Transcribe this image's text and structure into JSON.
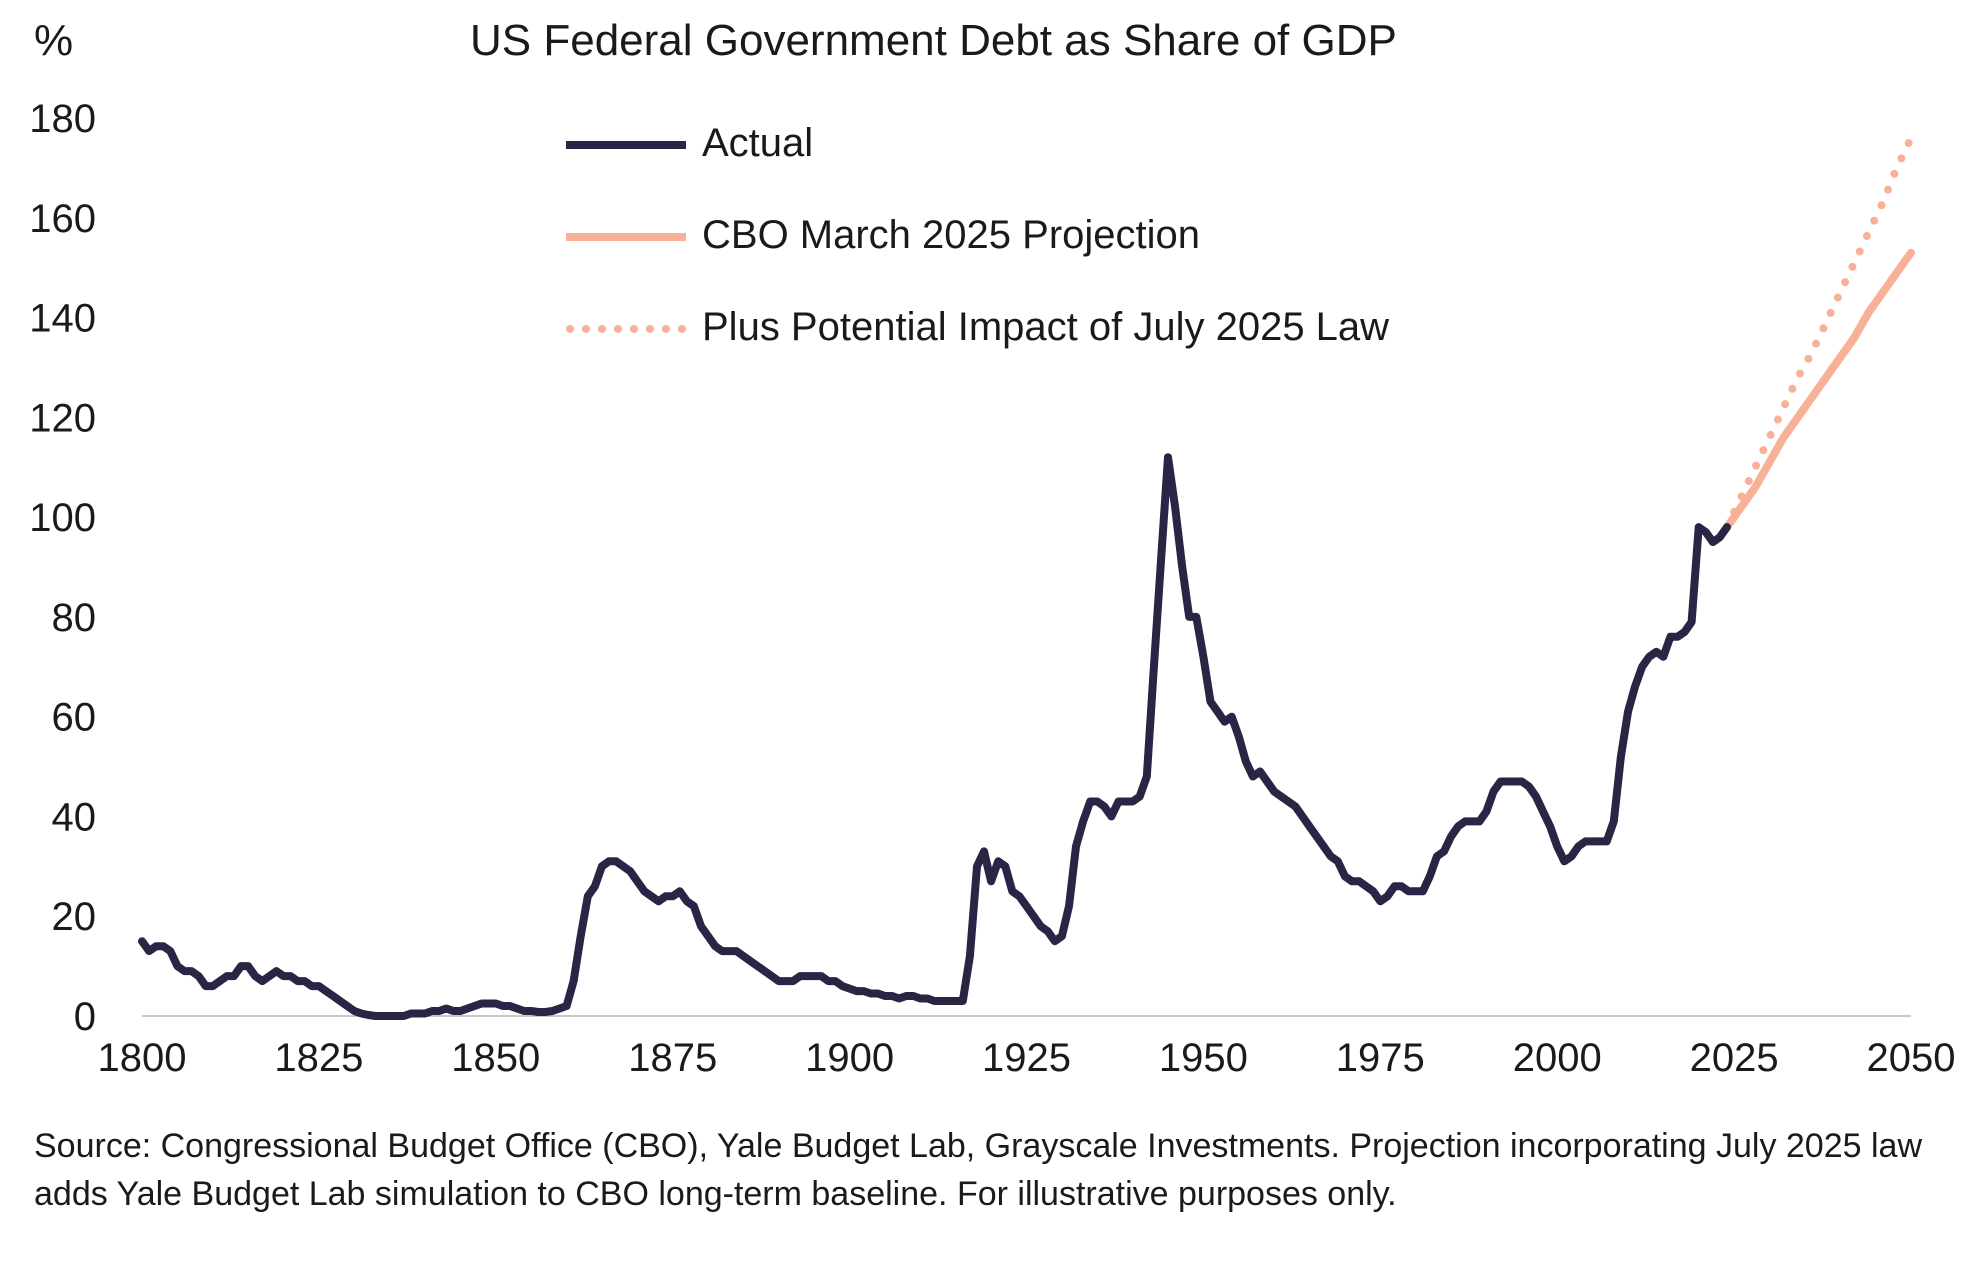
{
  "chart_data": {
    "type": "line",
    "title": "US Federal Government Debt as Share of GDP",
    "ylabel": "%",
    "xlim": [
      1800,
      2050
    ],
    "ylim": [
      0,
      180
    ],
    "xticks": [
      "1800",
      "1825",
      "1850",
      "1875",
      "1900",
      "1925",
      "1950",
      "1975",
      "2000",
      "2025",
      "2050"
    ],
    "yticks": [
      "0",
      "20",
      "40",
      "60",
      "80",
      "100",
      "120",
      "140",
      "160",
      "180"
    ],
    "grid": false,
    "legend_position": "top-center",
    "colors": {
      "actual": "#2a2445",
      "projection": "#f8b196"
    },
    "series": [
      {
        "name": "Actual",
        "style": "solid",
        "color": "#2a2445",
        "points": [
          [
            1800,
            15
          ],
          [
            1801,
            13
          ],
          [
            1802,
            14
          ],
          [
            1803,
            14
          ],
          [
            1804,
            13
          ],
          [
            1805,
            10
          ],
          [
            1806,
            9
          ],
          [
            1807,
            9
          ],
          [
            1808,
            8
          ],
          [
            1809,
            6
          ],
          [
            1810,
            6
          ],
          [
            1811,
            7
          ],
          [
            1812,
            8
          ],
          [
            1813,
            8
          ],
          [
            1814,
            10
          ],
          [
            1815,
            10
          ],
          [
            1816,
            8
          ],
          [
            1817,
            7
          ],
          [
            1818,
            8
          ],
          [
            1819,
            9
          ],
          [
            1820,
            8
          ],
          [
            1821,
            8
          ],
          [
            1822,
            7
          ],
          [
            1823,
            7
          ],
          [
            1824,
            6
          ],
          [
            1825,
            6
          ],
          [
            1826,
            5
          ],
          [
            1827,
            4
          ],
          [
            1828,
            3
          ],
          [
            1829,
            2
          ],
          [
            1830,
            1
          ],
          [
            1831,
            0.5
          ],
          [
            1832,
            0.2
          ],
          [
            1833,
            0
          ],
          [
            1834,
            0
          ],
          [
            1835,
            0
          ],
          [
            1836,
            0
          ],
          [
            1837,
            0
          ],
          [
            1838,
            0.5
          ],
          [
            1839,
            0.5
          ],
          [
            1840,
            0.5
          ],
          [
            1841,
            1
          ],
          [
            1842,
            1
          ],
          [
            1843,
            1.5
          ],
          [
            1844,
            1
          ],
          [
            1845,
            1
          ],
          [
            1846,
            1.5
          ],
          [
            1847,
            2
          ],
          [
            1848,
            2.5
          ],
          [
            1849,
            2.5
          ],
          [
            1850,
            2.5
          ],
          [
            1851,
            2
          ],
          [
            1852,
            2
          ],
          [
            1853,
            1.5
          ],
          [
            1854,
            1
          ],
          [
            1855,
            1
          ],
          [
            1856,
            0.8
          ],
          [
            1857,
            0.8
          ],
          [
            1858,
            1
          ],
          [
            1859,
            1.5
          ],
          [
            1860,
            2
          ],
          [
            1861,
            7
          ],
          [
            1862,
            16
          ],
          [
            1863,
            24
          ],
          [
            1864,
            26
          ],
          [
            1865,
            30
          ],
          [
            1866,
            31
          ],
          [
            1867,
            31
          ],
          [
            1868,
            30
          ],
          [
            1869,
            29
          ],
          [
            1870,
            27
          ],
          [
            1871,
            25
          ],
          [
            1872,
            24
          ],
          [
            1873,
            23
          ],
          [
            1874,
            24
          ],
          [
            1875,
            24
          ],
          [
            1876,
            25
          ],
          [
            1877,
            23
          ],
          [
            1878,
            22
          ],
          [
            1879,
            18
          ],
          [
            1880,
            16
          ],
          [
            1881,
            14
          ],
          [
            1882,
            13
          ],
          [
            1883,
            13
          ],
          [
            1884,
            13
          ],
          [
            1885,
            12
          ],
          [
            1886,
            11
          ],
          [
            1887,
            10
          ],
          [
            1888,
            9
          ],
          [
            1889,
            8
          ],
          [
            1890,
            7
          ],
          [
            1891,
            7
          ],
          [
            1892,
            7
          ],
          [
            1893,
            8
          ],
          [
            1894,
            8
          ],
          [
            1895,
            8
          ],
          [
            1896,
            8
          ],
          [
            1897,
            7
          ],
          [
            1898,
            7
          ],
          [
            1899,
            6
          ],
          [
            1900,
            5.5
          ],
          [
            1901,
            5
          ],
          [
            1902,
            5
          ],
          [
            1903,
            4.5
          ],
          [
            1904,
            4.5
          ],
          [
            1905,
            4
          ],
          [
            1906,
            4
          ],
          [
            1907,
            3.5
          ],
          [
            1908,
            4
          ],
          [
            1909,
            4
          ],
          [
            1910,
            3.5
          ],
          [
            1911,
            3.5
          ],
          [
            1912,
            3
          ],
          [
            1913,
            3
          ],
          [
            1914,
            3
          ],
          [
            1915,
            3
          ],
          [
            1916,
            3
          ],
          [
            1917,
            12
          ],
          [
            1918,
            30
          ],
          [
            1919,
            33
          ],
          [
            1920,
            27
          ],
          [
            1921,
            31
          ],
          [
            1922,
            30
          ],
          [
            1923,
            25
          ],
          [
            1924,
            24
          ],
          [
            1925,
            22
          ],
          [
            1926,
            20
          ],
          [
            1927,
            18
          ],
          [
            1928,
            17
          ],
          [
            1929,
            15
          ],
          [
            1930,
            16
          ],
          [
            1931,
            22
          ],
          [
            1932,
            34
          ],
          [
            1933,
            39
          ],
          [
            1934,
            43
          ],
          [
            1935,
            43
          ],
          [
            1936,
            42
          ],
          [
            1937,
            40
          ],
          [
            1938,
            43
          ],
          [
            1939,
            43
          ],
          [
            1940,
            43
          ],
          [
            1941,
            44
          ],
          [
            1942,
            48
          ],
          [
            1943,
            70
          ],
          [
            1944,
            91
          ],
          [
            1945,
            112
          ],
          [
            1946,
            102
          ],
          [
            1947,
            90
          ],
          [
            1948,
            80
          ],
          [
            1949,
            80
          ],
          [
            1950,
            72
          ],
          [
            1951,
            63
          ],
          [
            1952,
            61
          ],
          [
            1953,
            59
          ],
          [
            1954,
            60
          ],
          [
            1955,
            56
          ],
          [
            1956,
            51
          ],
          [
            1957,
            48
          ],
          [
            1958,
            49
          ],
          [
            1959,
            47
          ],
          [
            1960,
            45
          ],
          [
            1961,
            44
          ],
          [
            1962,
            43
          ],
          [
            1963,
            42
          ],
          [
            1964,
            40
          ],
          [
            1965,
            38
          ],
          [
            1966,
            36
          ],
          [
            1967,
            34
          ],
          [
            1968,
            32
          ],
          [
            1969,
            31
          ],
          [
            1970,
            28
          ],
          [
            1971,
            27
          ],
          [
            1972,
            27
          ],
          [
            1973,
            26
          ],
          [
            1974,
            25
          ],
          [
            1975,
            23
          ],
          [
            1976,
            24
          ],
          [
            1977,
            26
          ],
          [
            1978,
            26
          ],
          [
            1979,
            25
          ],
          [
            1980,
            25
          ],
          [
            1981,
            25
          ],
          [
            1982,
            28
          ],
          [
            1983,
            32
          ],
          [
            1984,
            33
          ],
          [
            1985,
            36
          ],
          [
            1986,
            38
          ],
          [
            1987,
            39
          ],
          [
            1988,
            39
          ],
          [
            1989,
            39
          ],
          [
            1990,
            41
          ],
          [
            1991,
            45
          ],
          [
            1992,
            47
          ],
          [
            1993,
            47
          ],
          [
            1994,
            47
          ],
          [
            1995,
            47
          ],
          [
            1996,
            46
          ],
          [
            1997,
            44
          ],
          [
            1998,
            41
          ],
          [
            1999,
            38
          ],
          [
            2000,
            34
          ],
          [
            2001,
            31
          ],
          [
            2002,
            32
          ],
          [
            2003,
            34
          ],
          [
            2004,
            35
          ],
          [
            2005,
            35
          ],
          [
            2006,
            35
          ],
          [
            2007,
            35
          ],
          [
            2008,
            39
          ],
          [
            2009,
            52
          ],
          [
            2010,
            61
          ],
          [
            2011,
            66
          ],
          [
            2012,
            70
          ],
          [
            2013,
            72
          ],
          [
            2014,
            73
          ],
          [
            2015,
            72
          ],
          [
            2016,
            76
          ],
          [
            2017,
            76
          ],
          [
            2018,
            77
          ],
          [
            2019,
            79
          ],
          [
            2020,
            98
          ],
          [
            2021,
            97
          ],
          [
            2022,
            95
          ],
          [
            2023,
            96
          ],
          [
            2024,
            98
          ]
        ]
      },
      {
        "name": "CBO March 2025 Projection",
        "style": "solid",
        "color": "#f8b196",
        "points": [
          [
            2024,
            98
          ],
          [
            2026,
            102
          ],
          [
            2028,
            106
          ],
          [
            2030,
            111
          ],
          [
            2032,
            116
          ],
          [
            2034,
            120
          ],
          [
            2036,
            124
          ],
          [
            2038,
            128
          ],
          [
            2040,
            132
          ],
          [
            2042,
            136
          ],
          [
            2044,
            141
          ],
          [
            2046,
            145
          ],
          [
            2048,
            149
          ],
          [
            2050,
            153
          ]
        ]
      },
      {
        "name": "Plus Potential Impact of July 2025 Law",
        "style": "dotted",
        "color": "#f8b196",
        "points": [
          [
            2024,
            98
          ],
          [
            2026,
            104
          ],
          [
            2028,
            110
          ],
          [
            2030,
            116
          ],
          [
            2032,
            122
          ],
          [
            2034,
            128
          ],
          [
            2036,
            133
          ],
          [
            2038,
            139
          ],
          [
            2040,
            145
          ],
          [
            2042,
            151
          ],
          [
            2044,
            157
          ],
          [
            2046,
            163
          ],
          [
            2048,
            170
          ],
          [
            2050,
            176
          ]
        ]
      }
    ],
    "source": "Source: Congressional Budget Office (CBO), Yale Budget Lab, Grayscale Investments. Projection incorporating July 2025 law adds Yale Budget Lab simulation to CBO long-term baseline. For illustrative purposes only."
  }
}
